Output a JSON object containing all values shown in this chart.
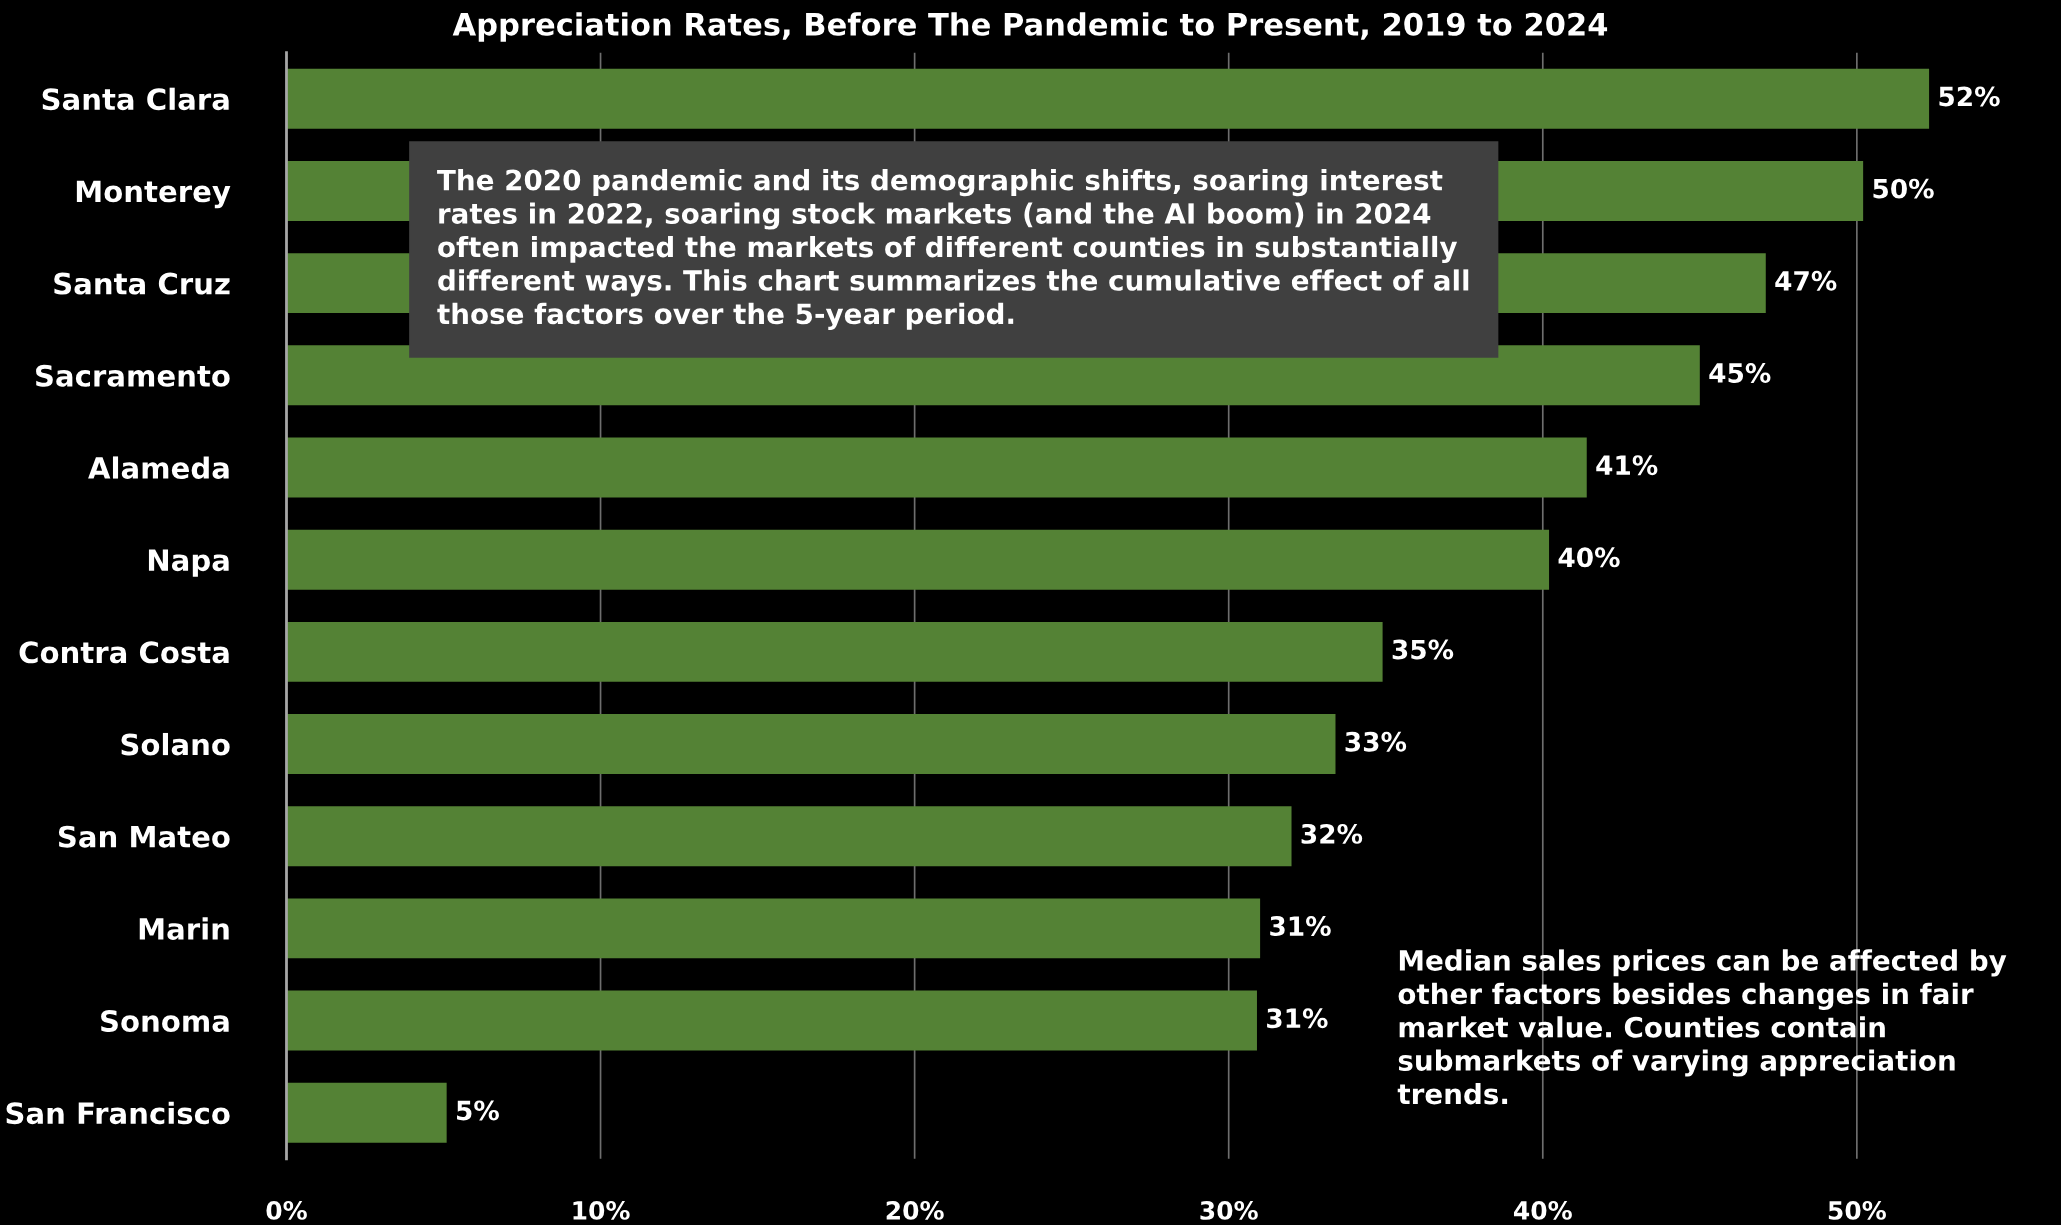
{
  "chart_data": {
    "type": "bar",
    "orientation": "horizontal",
    "title": "Appreciation Rates, Before The Pandemic to Present, 2019 to 2024",
    "categories": [
      "Santa Clara",
      "Monterey",
      "Santa Cruz",
      "Sacramento",
      "Alameda",
      "Napa",
      "Contra Costa",
      "Solano",
      "San Mateo",
      "Marin",
      "Sonoma",
      "San Francisco"
    ],
    "values": [
      52.3,
      50.2,
      47.1,
      45.0,
      41.4,
      40.2,
      34.9,
      33.4,
      32.0,
      31.0,
      30.9,
      5.1
    ],
    "value_labels": [
      "52%",
      "50%",
      "47%",
      "45%",
      "41%",
      "40%",
      "35%",
      "33%",
      "32%",
      "31%",
      "31%",
      "5%"
    ],
    "color": "#548235",
    "xlim": [
      0,
      56.5
    ],
    "xticks": [
      {
        "value": 0,
        "label": "0%"
      },
      {
        "value": 10,
        "label": "10%"
      },
      {
        "value": 20,
        "label": "20%"
      },
      {
        "value": 30,
        "label": "30%"
      },
      {
        "value": 40,
        "label": "40%"
      },
      {
        "value": 50,
        "label": "50%"
      }
    ],
    "grid": "x",
    "legend": false,
    "annotations": [
      "The 2020 pandemic and its demographic shifts, soaring interest rates in 2022, soaring stock markets (and the AI boom) in 2024 often impacted the markets of different counties in substantially different ways. This chart summarizes the cumulative effect of all those factors over the 5-year period.",
      "Median sales prices can be affected by other factors besides changes in fair market value. Counties contain submarkets of varying appreciation trends."
    ]
  }
}
